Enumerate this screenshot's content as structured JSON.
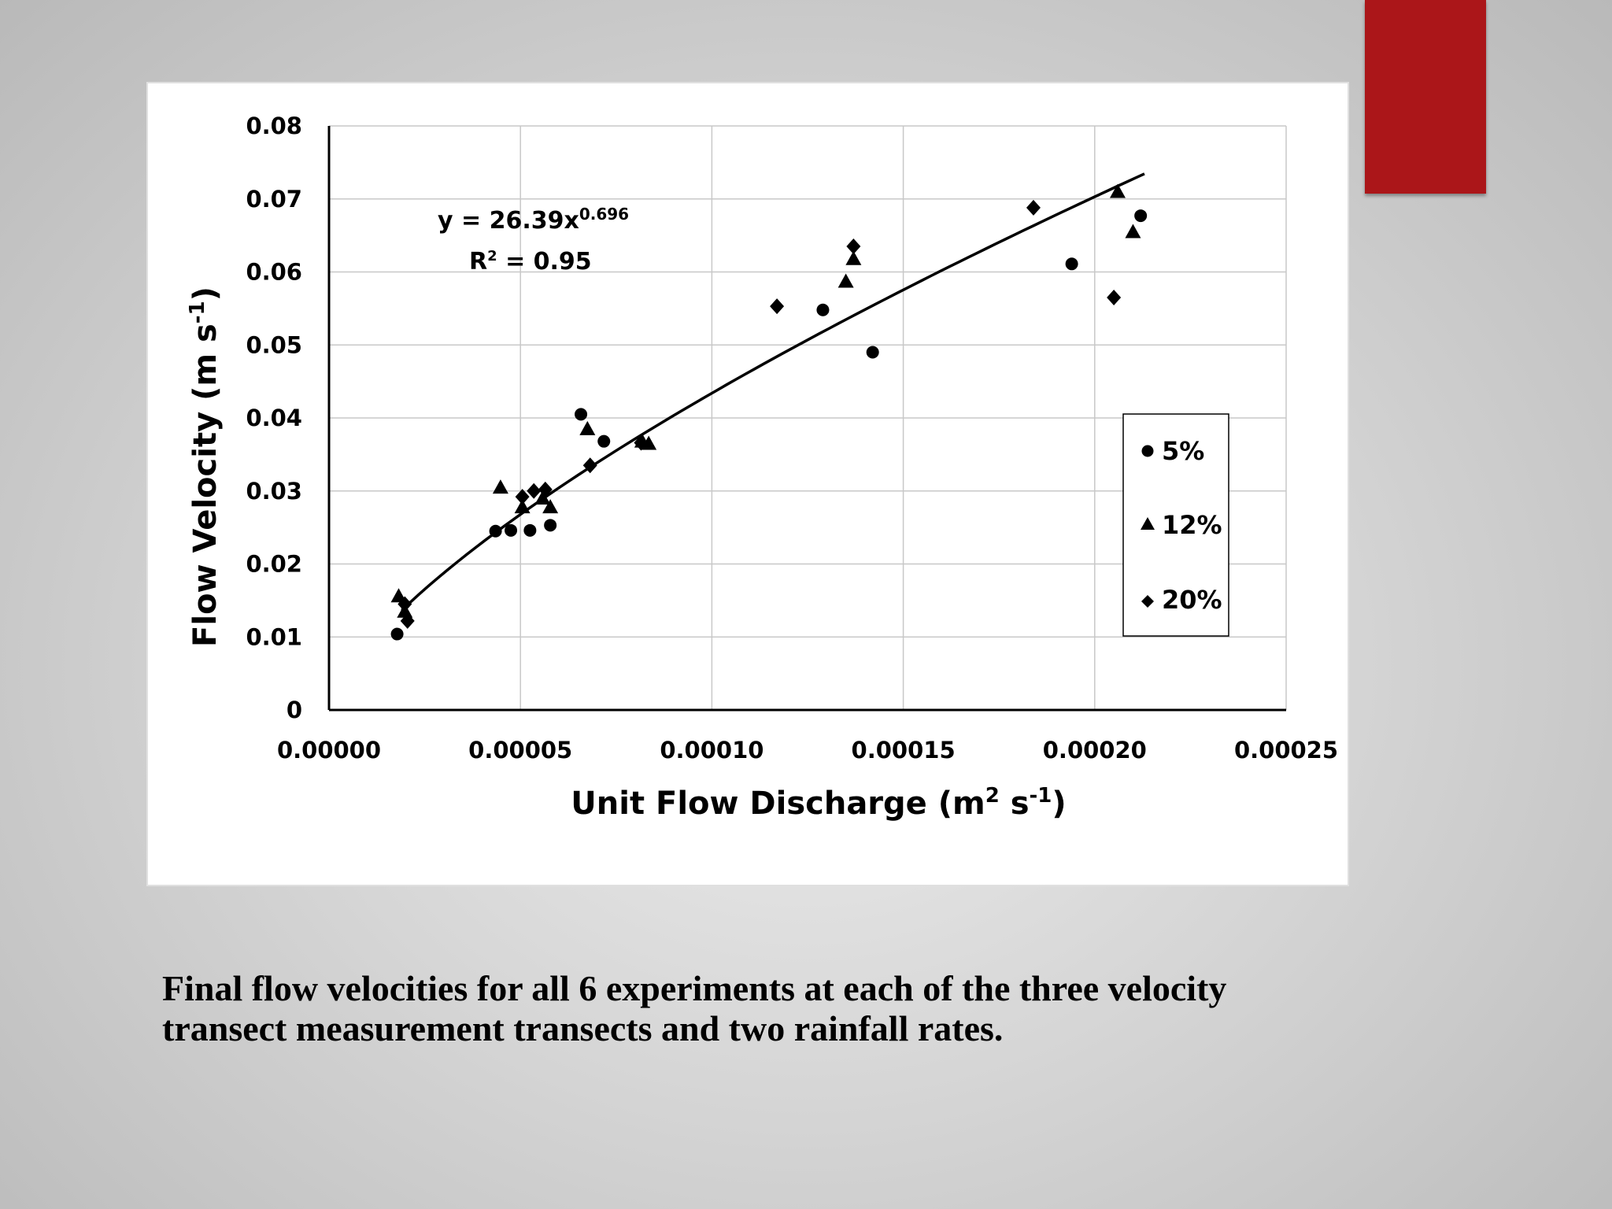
{
  "slide": {
    "caption_line1": "Final flow velocities for all 6 experiments at each of the three velocity",
    "caption_line2": "transect measurement transects and two rainfall rates.",
    "accent_color": "#ab1619"
  },
  "chart_data": {
    "type": "scatter",
    "title": "",
    "xlabel": "Unit Flow Discharge (m² s⁻¹)",
    "xlabel_main": "Unit Flow Discharge (m",
    "xlabel_sup1": "2",
    "xlabel_mid": " s",
    "xlabel_sup2": "-1",
    "xlabel_end": ")",
    "ylabel": "Flow Velocity (m s⁻¹)",
    "ylabel_main": "Flow Velocity (m s",
    "ylabel_sup": "-1",
    "ylabel_end": ")",
    "xlim": [
      0,
      0.00025
    ],
    "ylim": [
      0,
      0.08
    ],
    "x_ticks": [
      "0.00000",
      "0.00005",
      "0.00010",
      "0.00015",
      "0.00020",
      "0.00025"
    ],
    "y_ticks": [
      "0",
      "0.01",
      "0.02",
      "0.03",
      "0.04",
      "0.05",
      "0.06",
      "0.07",
      "0.08"
    ],
    "grid": true,
    "legend_position": "right",
    "series": [
      {
        "name": "5%",
        "marker": "circle",
        "points": [
          [
            1.78e-05,
            0.0104
          ],
          [
            4.35e-05,
            0.0245
          ],
          [
            4.75e-05,
            0.0246
          ],
          [
            5.25e-05,
            0.0246
          ],
          [
            5.78e-05,
            0.0253
          ],
          [
            6.58e-05,
            0.0405
          ],
          [
            7.18e-05,
            0.0368
          ],
          [
            0.000129,
            0.0548
          ],
          [
            0.000142,
            0.049
          ],
          [
            0.000194,
            0.0611
          ],
          [
            0.000212,
            0.0677
          ]
        ]
      },
      {
        "name": "12%",
        "marker": "triangle",
        "points": [
          [
            1.82e-05,
            0.0156
          ],
          [
            1.98e-05,
            0.0135
          ],
          [
            4.48e-05,
            0.0305
          ],
          [
            5.05e-05,
            0.0278
          ],
          [
            5.58e-05,
            0.029
          ],
          [
            5.78e-05,
            0.0278
          ],
          [
            6.75e-05,
            0.0385
          ],
          [
            8.18e-05,
            0.0368
          ],
          [
            8.35e-05,
            0.0365
          ],
          [
            0.000135,
            0.0587
          ],
          [
            0.000137,
            0.0618
          ],
          [
            0.000206,
            0.071
          ],
          [
            0.00021,
            0.0655
          ]
        ]
      },
      {
        "name": "20%",
        "marker": "diamond",
        "points": [
          [
            1.98e-05,
            0.0145
          ],
          [
            2.05e-05,
            0.0122
          ],
          [
            5.05e-05,
            0.0292
          ],
          [
            5.35e-05,
            0.03
          ],
          [
            5.65e-05,
            0.0302
          ],
          [
            6.82e-05,
            0.0335
          ],
          [
            8.15e-05,
            0.0366
          ],
          [
            0.000117,
            0.0553
          ],
          [
            0.000137,
            0.0635
          ],
          [
            0.000184,
            0.0688
          ],
          [
            0.000205,
            0.0565
          ]
        ]
      }
    ],
    "trendline": {
      "type": "power",
      "a": 26.39,
      "b": 0.696,
      "x_range": [
        1.9e-05,
        0.000213
      ],
      "equation_prefix": "y = 26.39x",
      "equation_exponent": "0.696",
      "r2_prefix": "R",
      "r2_sup": "2",
      "r2_value": " = 0.95"
    }
  }
}
